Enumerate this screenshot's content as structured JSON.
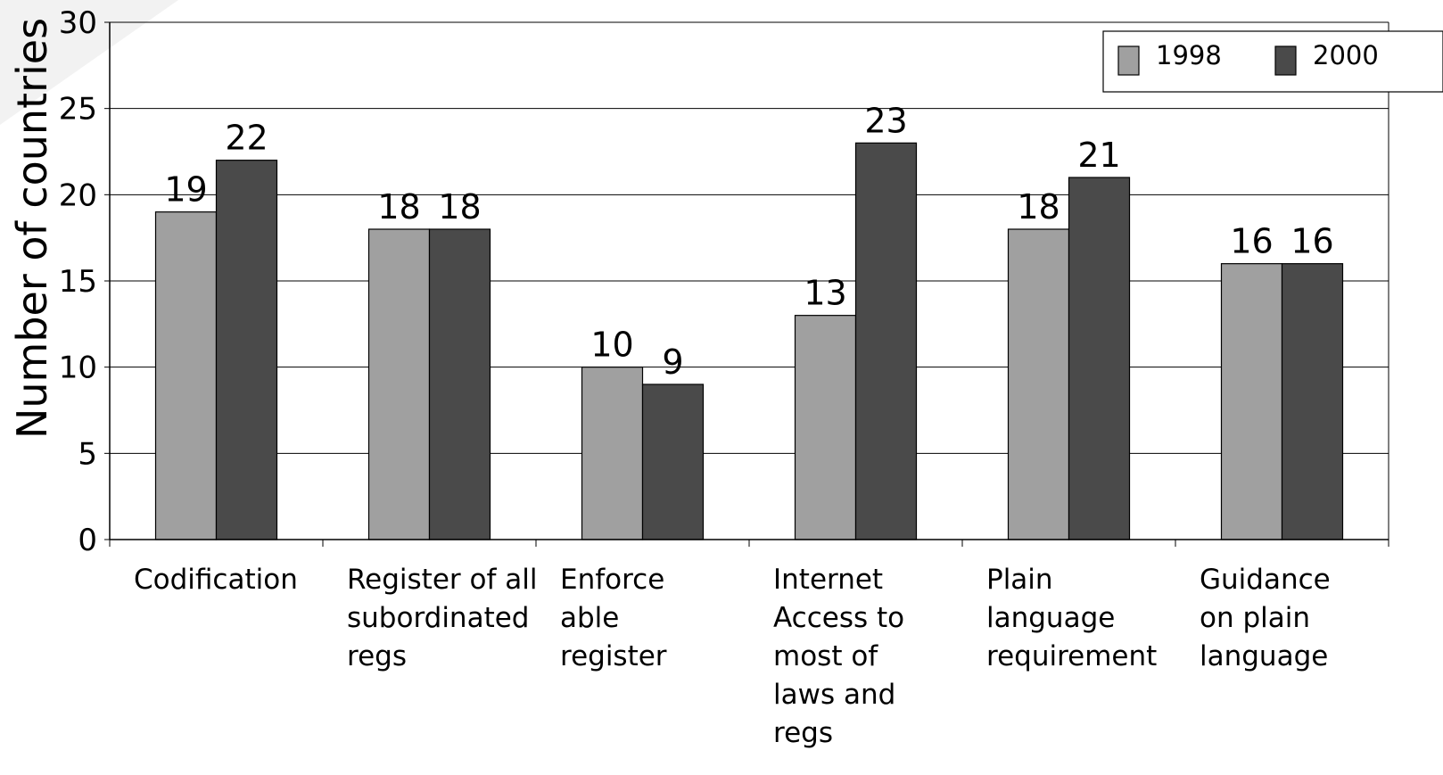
{
  "chart_data": {
    "type": "bar",
    "ylabel": "Number of countries",
    "ylim": [
      0,
      30
    ],
    "yticks": [
      "0",
      "5",
      "10",
      "15",
      "20",
      "25",
      "30"
    ],
    "categories": [
      [
        "Codification"
      ],
      [
        "Register of all",
        "subordinated",
        "regs"
      ],
      [
        "Enforce",
        "able",
        "register"
      ],
      [
        "Internet",
        "Access to",
        "most of",
        "laws and",
        "regs"
      ],
      [
        "Plain",
        "language",
        "requirement"
      ],
      [
        "Guidance",
        "on plain",
        "language"
      ]
    ],
    "series": [
      {
        "name": "1998",
        "color": "#a0a0a0",
        "values": [
          19,
          18,
          10,
          13,
          18,
          16
        ]
      },
      {
        "name": "2000",
        "color": "#4a4a4a",
        "values": [
          22,
          18,
          9,
          23,
          21,
          16
        ]
      }
    ],
    "grid": true,
    "legend": "top-right"
  }
}
